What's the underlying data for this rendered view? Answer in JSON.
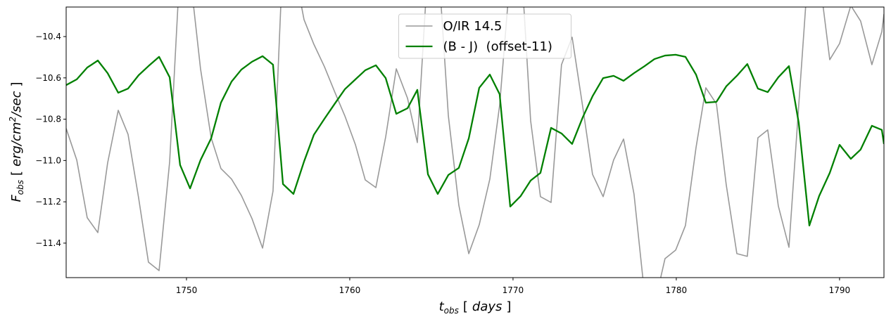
{
  "chart_data": {
    "type": "line",
    "xlabel": {
      "symbol": "t",
      "sub": "obs",
      "open": "[",
      "unit": "days",
      "close": "]"
    },
    "ylabel": {
      "symbol": "F",
      "sub": "obs",
      "open": "[",
      "unit": "erg/cm",
      "sup": "2",
      "unit2": "/sec",
      "close": "]"
    },
    "x": [
      1742.63,
      1743.28,
      1743.92,
      1744.57,
      1745.17,
      1745.82,
      1746.42,
      1747.07,
      1747.67,
      1748.32,
      1748.97,
      1749.61,
      1750.22,
      1750.86,
      1751.51,
      1752.11,
      1752.76,
      1753.36,
      1754.01,
      1754.66,
      1755.3,
      1755.91,
      1756.55,
      1757.2,
      1757.8,
      1758.45,
      1759.1,
      1759.7,
      1760.35,
      1760.95,
      1761.6,
      1762.2,
      1762.85,
      1763.54,
      1764.14,
      1764.79,
      1765.39,
      1766.04,
      1766.68,
      1767.29,
      1767.93,
      1768.58,
      1769.18,
      1769.83,
      1770.47,
      1771.08,
      1771.68,
      1772.33,
      1772.97,
      1773.62,
      1774.27,
      1774.87,
      1775.52,
      1776.16,
      1776.77,
      1777.41,
      1778.06,
      1778.66,
      1779.31,
      1779.96,
      1780.56,
      1781.21,
      1781.81,
      1782.46,
      1783.06,
      1783.71,
      1784.35,
      1785.0,
      1785.6,
      1786.25,
      1786.9,
      1787.5,
      1788.15,
      1788.75,
      1789.4,
      1790.0,
      1790.69,
      1791.29,
      1791.98,
      1792.59,
      1792.72
    ],
    "series": [
      {
        "name": "O/IR 14.5",
        "color": "#999999",
        "values": [
          -10.845,
          -10.998,
          -11.277,
          -11.349,
          -11.012,
          -10.757,
          -10.873,
          -11.182,
          -11.492,
          -11.533,
          -11.005,
          -10.05,
          -10.1,
          -10.556,
          -10.89,
          -11.039,
          -11.09,
          -11.169,
          -11.281,
          -11.424,
          -11.148,
          -10.0,
          -10.05,
          -10.318,
          -10.437,
          -10.546,
          -10.672,
          -10.784,
          -10.924,
          -11.094,
          -11.131,
          -10.886,
          -10.556,
          -10.699,
          -10.913,
          -10.05,
          -10.0,
          -10.784,
          -11.216,
          -11.451,
          -11.311,
          -11.09,
          -10.733,
          -10.1,
          -10.0,
          -10.808,
          -11.175,
          -11.203,
          -10.536,
          -10.403,
          -10.74,
          -11.067,
          -11.175,
          -10.998,
          -10.896,
          -11.162,
          -11.65,
          -11.7,
          -11.475,
          -11.434,
          -11.315,
          -10.937,
          -10.648,
          -10.726,
          -11.118,
          -11.451,
          -11.464,
          -10.89,
          -10.852,
          -11.22,
          -11.42,
          -10.733,
          -10.0,
          -10.1,
          -10.512,
          -10.434,
          -10.25,
          -10.325,
          -10.536,
          -10.376,
          -10.291
        ]
      },
      {
        "name": "(B - J)  (offset-11)",
        "color": "#008000",
        "values": [
          -10.635,
          -10.607,
          -10.55,
          -10.516,
          -10.577,
          -10.672,
          -10.652,
          -10.587,
          -10.543,
          -10.498,
          -10.597,
          -11.022,
          -11.135,
          -10.998,
          -10.893,
          -10.72,
          -10.618,
          -10.56,
          -10.522,
          -10.495,
          -10.536,
          -11.114,
          -11.162,
          -11.005,
          -10.876,
          -10.798,
          -10.723,
          -10.655,
          -10.607,
          -10.563,
          -10.539,
          -10.601,
          -10.774,
          -10.747,
          -10.658,
          -11.067,
          -11.162,
          -11.07,
          -11.036,
          -10.893,
          -10.648,
          -10.584,
          -10.679,
          -11.223,
          -11.172,
          -11.097,
          -11.06,
          -10.842,
          -10.869,
          -10.92,
          -10.791,
          -10.689,
          -10.601,
          -10.59,
          -10.614,
          -10.577,
          -10.543,
          -10.509,
          -10.492,
          -10.488,
          -10.498,
          -10.584,
          -10.72,
          -10.716,
          -10.641,
          -10.59,
          -10.533,
          -10.652,
          -10.669,
          -10.597,
          -10.543,
          -10.818,
          -11.315,
          -11.172,
          -11.06,
          -10.924,
          -10.992,
          -10.947,
          -10.832,
          -10.852,
          -10.92
        ]
      }
    ],
    "xlim": [
      1742.63,
      1792.72
    ],
    "ylim": [
      -11.567,
      -10.257
    ],
    "xticks": [
      1750,
      1760,
      1770,
      1780,
      1790
    ],
    "yticks": [
      {
        "value": -11.4,
        "label": "−11.4"
      },
      {
        "value": -11.2,
        "label": "−11.2"
      },
      {
        "value": -11.0,
        "label": "−11.0"
      },
      {
        "value": -10.8,
        "label": "−10.8"
      },
      {
        "value": -10.6,
        "label": "−10.6"
      },
      {
        "value": -10.4,
        "label": "−10.4"
      }
    ],
    "legend": "upper center"
  }
}
